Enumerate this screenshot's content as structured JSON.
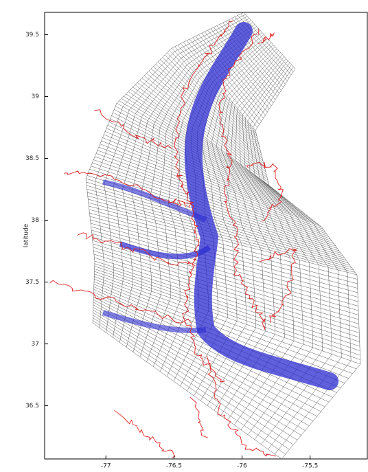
{
  "chart_data": {
    "type": "map",
    "ylabel": "latitude",
    "xlim": [
      -77.45,
      -75.08
    ],
    "xticks": [
      -77,
      -76.5,
      -76,
      -75.5
    ],
    "ylim": [
      36.07,
      39.68
    ],
    "yticks": [
      36.5,
      37,
      37.5,
      38,
      38.5,
      39,
      39.5
    ]
  }
}
